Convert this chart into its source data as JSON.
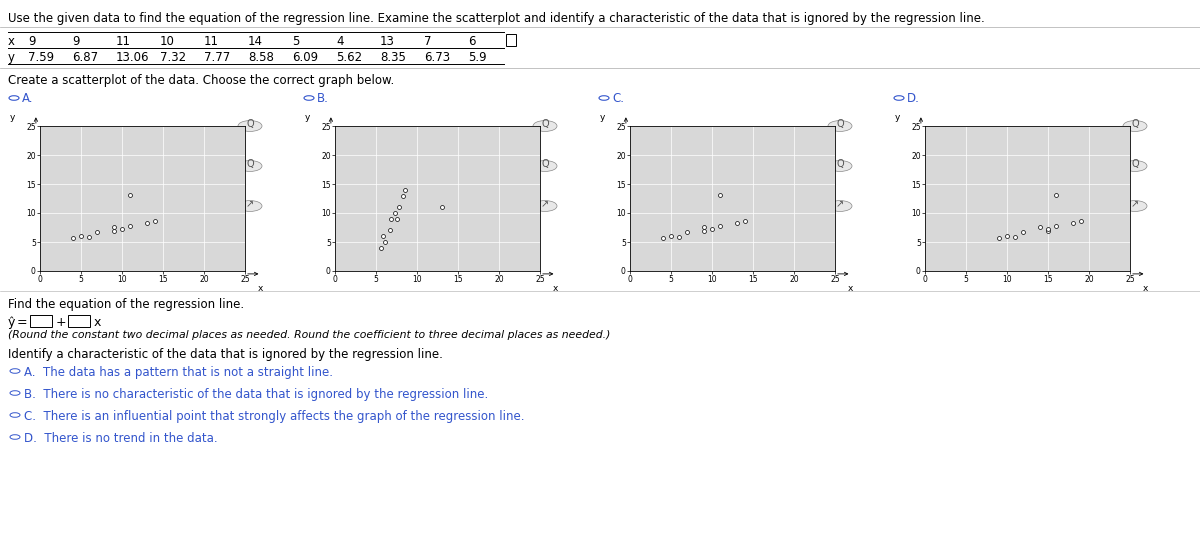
{
  "title": "Use the given data to find the equation of the regression line. Examine the scatterplot and identify a characteristic of the data that is ignored by the regression line.",
  "x_data": [
    9,
    9,
    11,
    10,
    11,
    14,
    5,
    4,
    13,
    7,
    6
  ],
  "y_data": [
    7.59,
    6.87,
    13.06,
    7.32,
    7.77,
    8.58,
    6.09,
    5.62,
    8.35,
    6.73,
    5.9
  ],
  "table_x_vals": [
    "9",
    "9",
    "11",
    "10",
    "11",
    "14",
    "5",
    "4",
    "13",
    "7",
    "6"
  ],
  "table_y_vals": [
    "7.59",
    "6.87",
    "13.06",
    "7.32",
    "7.77",
    "8.58",
    "6.09",
    "5.62",
    "8.35",
    "6.73",
    "5.9"
  ],
  "scatter_title": "Create a scatterplot of the data. Choose the correct graph below.",
  "regression_label": "Find the equation of the regression line.",
  "round_note": "(Round the constant two decimal places as needed. Round the coefficient to three decimal places as needed.)",
  "identify_label": "Identify a characteristic of the data that is ignored by the regression line.",
  "choice_A": "A.  The data has a pattern that is not a straight line.",
  "choice_B": "B.  There is no characteristic of the data that is ignored by the regression line.",
  "choice_C": "C.  There is an influential point that strongly affects the graph of the regression line.",
  "choice_D": "D.  There is no trend in the data.",
  "option_color": "#3355cc",
  "plot_bg_color": "#d8d8d8",
  "grid_color": "#ffffff",
  "scatter_sizes": [
    12,
    12,
    12,
    12,
    12,
    12,
    12,
    12,
    12,
    12,
    12
  ],
  "xlim": [
    0,
    25
  ],
  "ylim": [
    0,
    25
  ],
  "xticks": [
    0,
    5,
    10,
    15,
    20,
    25
  ],
  "yticks": [
    0,
    5,
    10,
    15,
    20,
    25
  ]
}
